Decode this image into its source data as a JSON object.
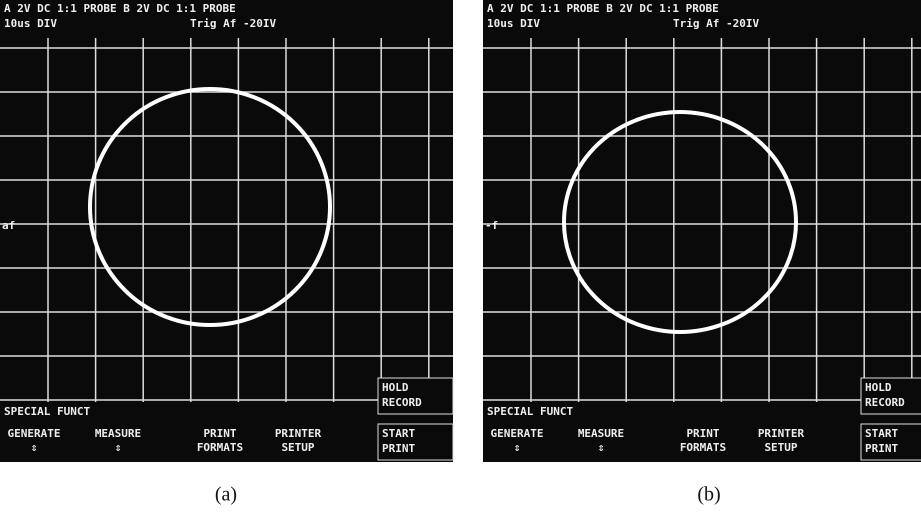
{
  "panels": [
    {
      "header": {
        "line1": "A 2V DC 1:1 PROBE  B 2V DC 1:1 PROBE",
        "timebase": "10us DIV",
        "trigger": "Trig Af -20IV"
      },
      "marker": "af",
      "function_label": "SPECIAL FUNCT",
      "menu": [
        {
          "top": "GENERATE",
          "bottom": "⇕"
        },
        {
          "top": "MEASURE",
          "bottom": "⇕"
        },
        {
          "top": "PRINT",
          "bottom": "FORMATS"
        },
        {
          "top": "PRINTER",
          "bottom": "SETUP"
        }
      ],
      "side_buttons": [
        [
          "HOLD",
          "RECORD"
        ],
        [
          "START",
          "PRINT"
        ]
      ],
      "caption": "(a)"
    },
    {
      "header": {
        "line1": "A 2V DC 1:1 PROBE  B 2V DC 1:1 PROBE",
        "timebase": "10us DIV",
        "trigger": "Trig Af -20IV"
      },
      "marker": "-f",
      "function_label": "SPECIAL FUNCT",
      "menu": [
        {
          "top": "GENERATE",
          "bottom": "⇕"
        },
        {
          "top": "MEASURE",
          "bottom": "⇕"
        },
        {
          "top": "PRINT",
          "bottom": "FORMATS"
        },
        {
          "top": "PRINTER",
          "bottom": "SETUP"
        }
      ],
      "side_buttons": [
        [
          "HOLD",
          "RECORD"
        ],
        [
          "START",
          "PRINT"
        ]
      ],
      "caption": "(b)"
    }
  ]
}
